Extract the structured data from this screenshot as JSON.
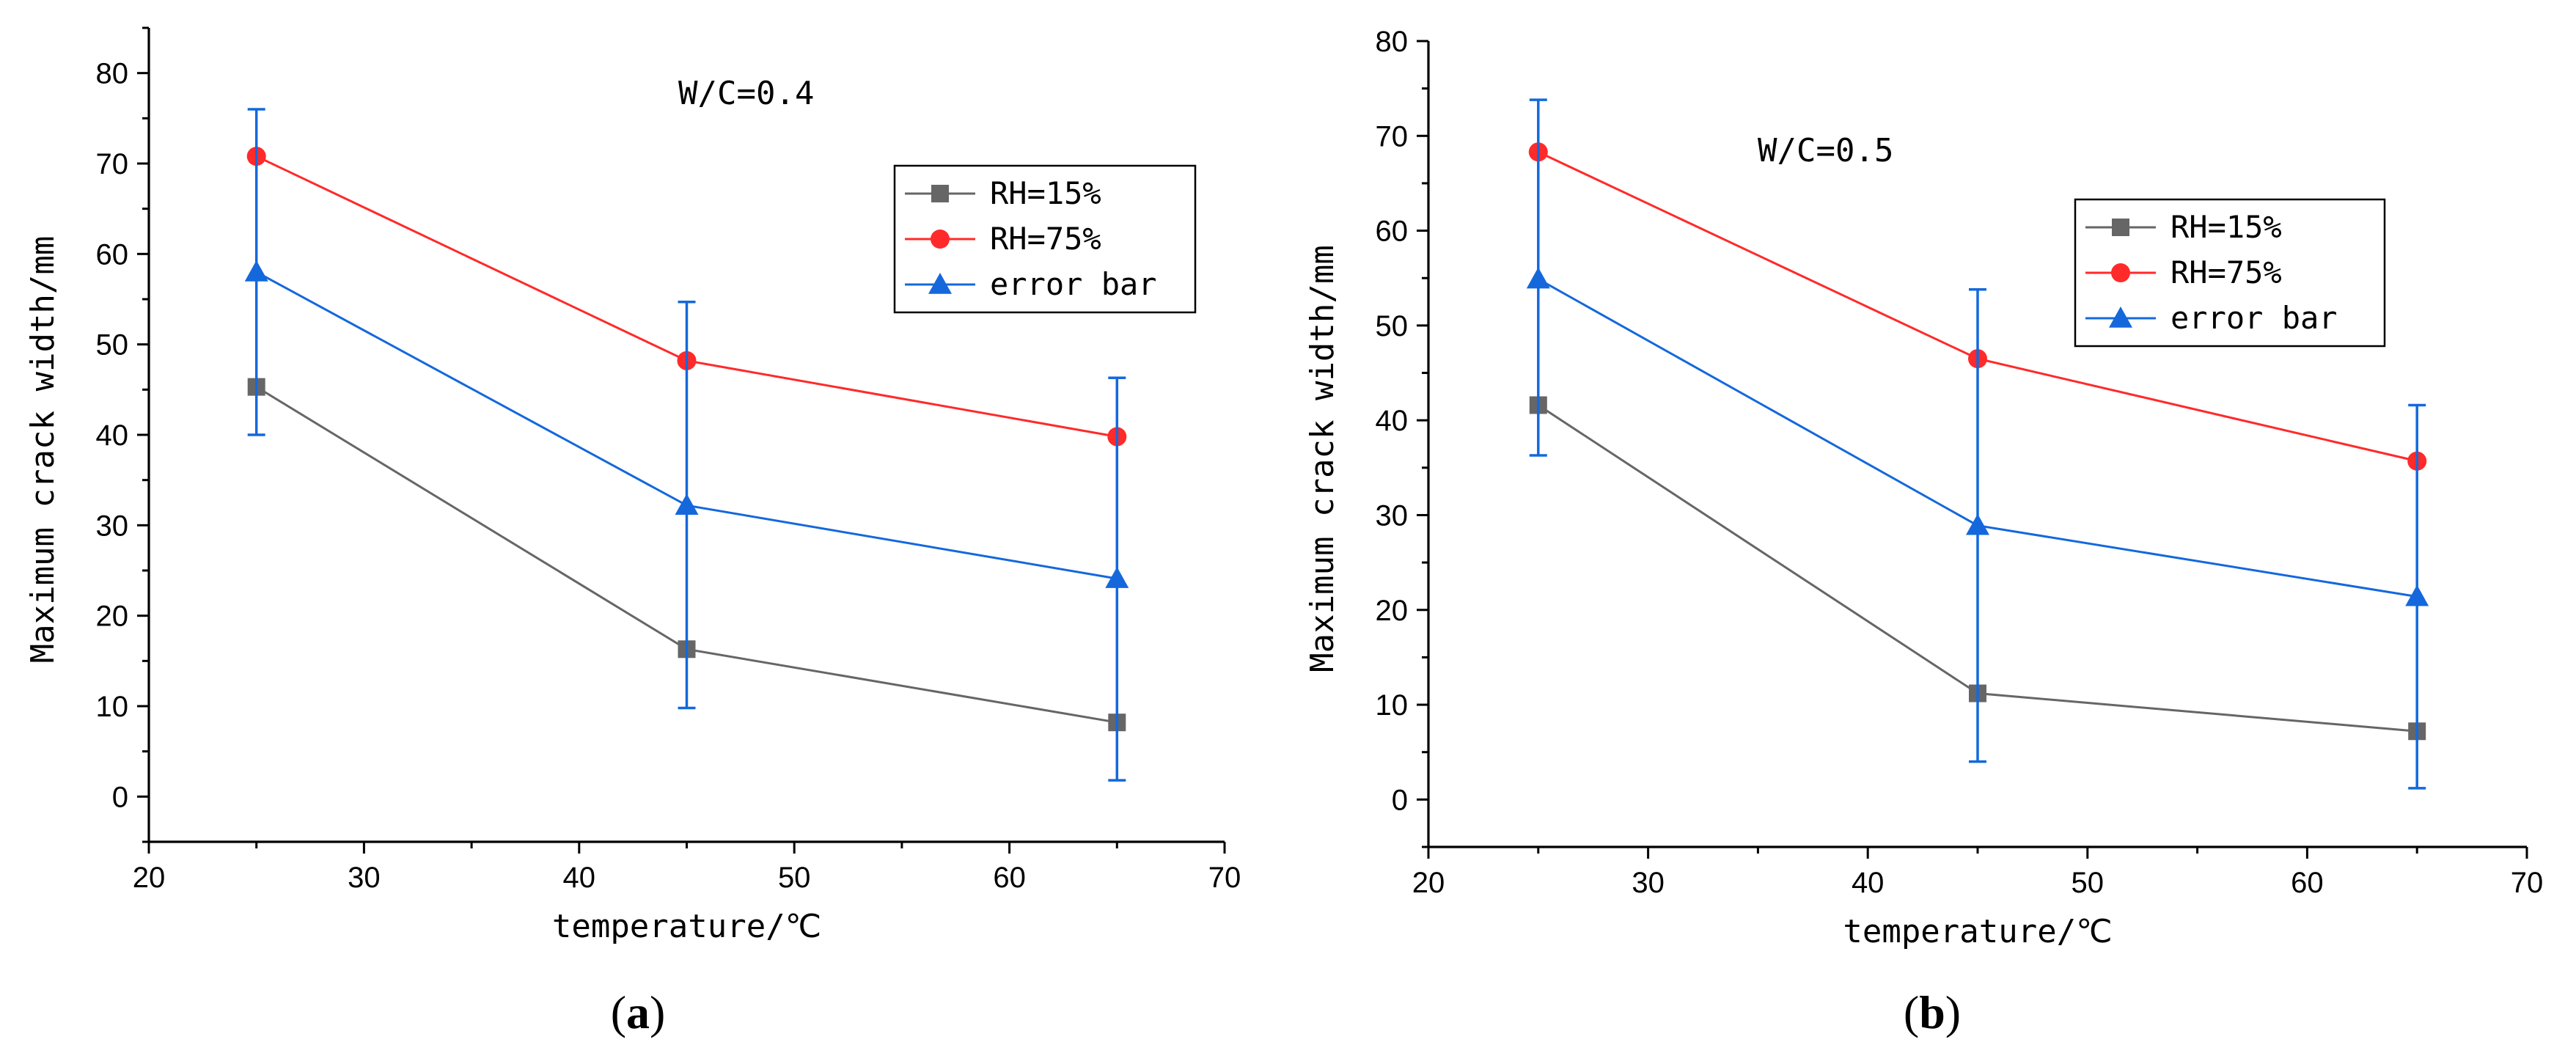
{
  "colors": {
    "RH=15%": "#666666",
    "RH=75%": "#ff2a2a",
    "error bar": "#1468dc"
  },
  "chart_data": [
    {
      "type": "line",
      "panel_label": "(a)",
      "annotation": "W/C=0.4",
      "xlabel": "temperature/℃",
      "ylabel": "Maximum crack width/mm",
      "xlim": [
        20,
        70
      ],
      "ylim": [
        -5,
        85
      ],
      "xticks": [
        20,
        30,
        40,
        50,
        60,
        70
      ],
      "yticks": [
        0,
        10,
        20,
        30,
        40,
        50,
        60,
        70,
        80
      ],
      "x": [
        25,
        45,
        65
      ],
      "legend_position": "upper-right",
      "series": [
        {
          "name": "RH=15%",
          "marker": "square",
          "values": [
            45.3,
            16.3,
            8.2
          ]
        },
        {
          "name": "RH=75%",
          "marker": "circle",
          "values": [
            70.8,
            48.2,
            39.8
          ]
        },
        {
          "name": "error bar",
          "marker": "triangle",
          "values": [
            58.0,
            32.2,
            24.1
          ],
          "error_low": [
            40.0,
            9.8,
            1.8
          ],
          "error_high": [
            76.0,
            54.7,
            46.3
          ]
        }
      ]
    },
    {
      "type": "line",
      "panel_label": "(b)",
      "annotation": "W/C=0.5",
      "xlabel": "temperature/℃",
      "ylabel": "Maximum crack width/mm",
      "xlim": [
        20,
        70
      ],
      "ylim": [
        -5,
        80
      ],
      "xticks": [
        20,
        30,
        40,
        50,
        60,
        70
      ],
      "yticks": [
        0,
        10,
        20,
        30,
        40,
        50,
        60,
        70,
        80
      ],
      "x": [
        25,
        45,
        65
      ],
      "legend_position": "upper-right",
      "series": [
        {
          "name": "RH=15%",
          "marker": "square",
          "values": [
            41.6,
            11.2,
            7.2
          ]
        },
        {
          "name": "RH=75%",
          "marker": "circle",
          "values": [
            68.3,
            46.5,
            35.7
          ]
        },
        {
          "name": "error bar",
          "marker": "triangle",
          "values": [
            54.9,
            28.9,
            21.4
          ],
          "error_low": [
            36.3,
            4.0,
            1.2
          ],
          "error_high": [
            73.8,
            53.8,
            41.6
          ]
        }
      ]
    }
  ]
}
